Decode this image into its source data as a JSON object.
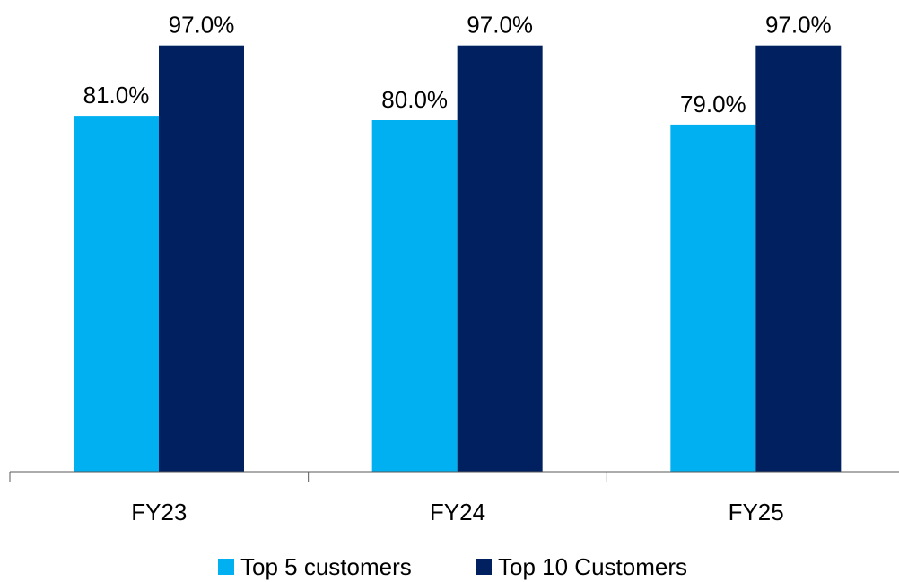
{
  "chart_data": {
    "type": "bar",
    "categories": [
      "FY23",
      "FY24",
      "FY25"
    ],
    "series": [
      {
        "name": "Top 5 customers",
        "values": [
          81.0,
          80.0,
          79.0
        ],
        "labels": [
          "81.0%",
          "80.0%",
          "79.0%"
        ],
        "color": "#00b0f0"
      },
      {
        "name": "Top 10 Customers",
        "values": [
          97.0,
          97.0,
          97.0
        ],
        "labels": [
          "97.0%",
          "97.0%",
          "97.0%"
        ],
        "color": "#002060"
      }
    ],
    "ylim": [
      0,
      100
    ],
    "grid": false,
    "legend_position": "bottom"
  }
}
